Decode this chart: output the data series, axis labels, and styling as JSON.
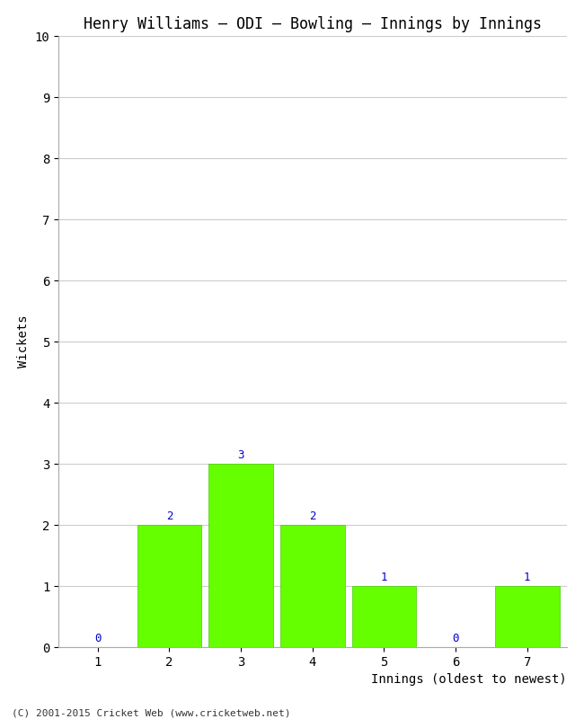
{
  "title": "Henry Williams – ODI – Bowling – Innings by Innings",
  "xlabel": "Innings (oldest to newest)",
  "ylabel": "Wickets",
  "categories": [
    "1",
    "2",
    "3",
    "4",
    "5",
    "6",
    "7"
  ],
  "values": [
    0,
    2,
    3,
    2,
    1,
    0,
    1
  ],
  "bar_color": "#66ff00",
  "bar_edge_color": "#44cc00",
  "ylim": [
    0,
    10
  ],
  "yticks": [
    0,
    1,
    2,
    3,
    4,
    5,
    6,
    7,
    8,
    9,
    10
  ],
  "background_color": "#ffffff",
  "grid_color": "#cccccc",
  "label_color": "#0000cc",
  "title_fontsize": 12,
  "axis_label_fontsize": 10,
  "tick_fontsize": 10,
  "annotation_fontsize": 9,
  "copyright": "(C) 2001-2015 Cricket Web (www.cricketweb.net)"
}
